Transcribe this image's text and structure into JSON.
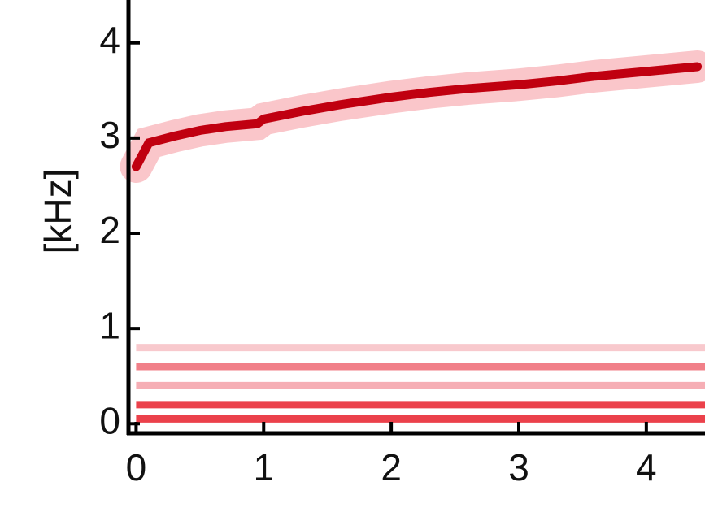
{
  "chart_data": {
    "type": "spectrogram",
    "ylabel": "[kHz]",
    "xlim": [
      -0.06,
      4.46
    ],
    "xticks": [
      0,
      1,
      2,
      3,
      4
    ],
    "ylim": [
      -0.1,
      4.45
    ],
    "yticks": [
      0,
      1,
      2,
      3,
      4
    ],
    "traces": [
      {
        "color": "#c00010",
        "x": [
          0,
          0.1,
          0.3,
          0.5,
          0.7,
          0.95,
          1.0,
          1.3,
          1.6,
          2.0,
          2.3,
          2.6,
          3.0,
          3.3,
          3.6,
          4.0,
          4.4
        ],
        "values": [
          2.7,
          2.95,
          3.02,
          3.08,
          3.12,
          3.15,
          3.2,
          3.28,
          3.35,
          3.43,
          3.48,
          3.52,
          3.56,
          3.6,
          3.65,
          3.7,
          3.75
        ]
      },
      {
        "color": "#e8202c",
        "x": [
          0,
          4.46
        ],
        "values": [
          0.05,
          0.05
        ]
      },
      {
        "color": "#e8202c",
        "x": [
          0,
          4.46
        ],
        "values": [
          0.2,
          0.2
        ]
      },
      {
        "color": "#f4a0a8",
        "x": [
          0,
          4.46
        ],
        "values": [
          0.4,
          0.4
        ]
      },
      {
        "color": "#ef6a74",
        "x": [
          0,
          4.46
        ],
        "values": [
          0.6,
          0.6
        ]
      },
      {
        "color": "#f7c0c4",
        "x": [
          0,
          4.46
        ],
        "values": [
          0.8,
          0.8
        ]
      }
    ]
  }
}
